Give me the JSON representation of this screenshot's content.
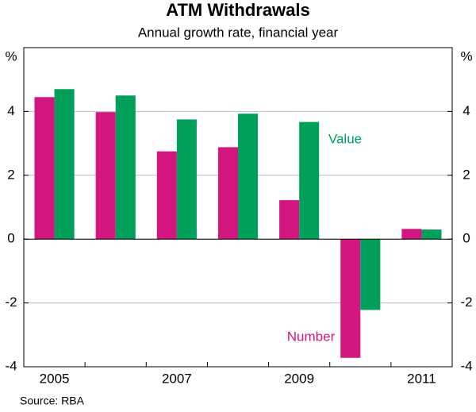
{
  "chart_data": {
    "type": "bar",
    "title": "ATM Withdrawals",
    "subtitle": "Annual growth rate, financial year",
    "y_unit": "%",
    "source": "Source: RBA",
    "categories": [
      "2005",
      null,
      "2007",
      null,
      "2009",
      null,
      "2011"
    ],
    "series": [
      {
        "name": "Number",
        "color": "#d3157f",
        "values": [
          4.45,
          3.98,
          2.75,
          2.88,
          1.22,
          -3.72,
          0.32
        ]
      },
      {
        "name": "Value",
        "color": "#00a05a",
        "values": [
          4.7,
          4.5,
          3.75,
          3.93,
          3.67,
          -2.22,
          0.3
        ]
      }
    ],
    "ylim": [
      -4,
      6
    ],
    "yticks": [
      -4,
      -2,
      0,
      2,
      4
    ],
    "y2lim": [
      -4,
      6
    ],
    "y2ticks": [
      -4,
      -2,
      0,
      2,
      4
    ],
    "grid": true
  }
}
